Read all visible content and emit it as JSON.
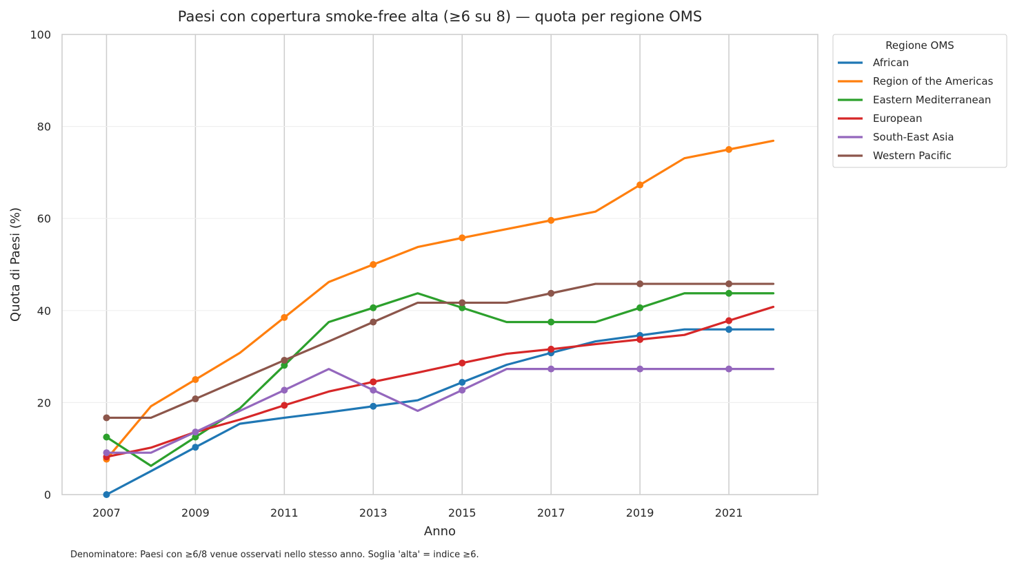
{
  "chart_data": {
    "type": "line",
    "title": "Paesi con copertura smoke-free alta (≥6 su 8) — quota per regione OMS",
    "xlabel": "Anno",
    "ylabel": "Quota di Paesi (%)",
    "xlim": [
      2006,
      2023
    ],
    "ylim": [
      0,
      100
    ],
    "xticks": [
      2007,
      2009,
      2011,
      2013,
      2015,
      2017,
      2019,
      2021
    ],
    "yticks": [
      0,
      20,
      40,
      60,
      80,
      100
    ],
    "grid": "on",
    "legend_title": "Regione OMS",
    "legend_placement": "outside-top-right",
    "footnote": "Denominatore: Paesi con ≥6/8 venue osservati nello stesso anno. Soglia 'alta' = indice ≥6.",
    "x": [
      2007,
      2008,
      2009,
      2010,
      2011,
      2012,
      2013,
      2014,
      2015,
      2016,
      2017,
      2018,
      2019,
      2020,
      2021,
      2022
    ],
    "series": [
      {
        "name": "African",
        "color": "#1f77b4",
        "values": [
          0,
          5.1,
          10.3,
          15.4,
          16.7,
          17.9,
          19.2,
          20.5,
          24.4,
          28.2,
          30.8,
          33.3,
          34.6,
          35.9,
          35.9,
          35.9
        ],
        "markers_at": [
          2007,
          2009,
          2013,
          2015,
          2017,
          2019,
          2021
        ]
      },
      {
        "name": "Region of the Americas",
        "color": "#ff7f0e",
        "values": [
          7.7,
          19.2,
          25.0,
          30.8,
          38.5,
          46.2,
          50.0,
          53.8,
          55.8,
          57.7,
          59.6,
          61.5,
          67.3,
          73.1,
          75.0,
          76.9
        ],
        "markers_at": [
          2007,
          2009,
          2011,
          2013,
          2015,
          2017,
          2019,
          2021
        ]
      },
      {
        "name": "Eastern Mediterranean",
        "color": "#2ca02c",
        "values": [
          12.5,
          6.25,
          12.5,
          18.75,
          28.1,
          37.5,
          40.6,
          43.75,
          40.6,
          37.5,
          37.5,
          37.5,
          40.6,
          43.75,
          43.75,
          43.75
        ],
        "markers_at": [
          2007,
          2009,
          2011,
          2013,
          2015,
          2017,
          2019,
          2021
        ]
      },
      {
        "name": "European",
        "color": "#d62728",
        "values": [
          8.2,
          10.2,
          13.6,
          16.3,
          19.4,
          22.4,
          24.5,
          26.5,
          28.6,
          30.6,
          31.6,
          32.7,
          33.7,
          34.7,
          37.8,
          40.8
        ],
        "markers_at": [
          2007,
          2011,
          2013,
          2015,
          2017,
          2019,
          2021
        ]
      },
      {
        "name": "South-East Asia",
        "color": "#9467bd",
        "values": [
          9.1,
          9.1,
          13.6,
          18.2,
          22.7,
          27.3,
          22.7,
          18.2,
          22.7,
          27.3,
          27.3,
          27.3,
          27.3,
          27.3,
          27.3,
          27.3
        ],
        "markers_at": [
          2007,
          2009,
          2011,
          2013,
          2015,
          2017,
          2019,
          2021
        ]
      },
      {
        "name": "Western Pacific",
        "color": "#8c564b",
        "values": [
          16.7,
          16.7,
          20.8,
          25.0,
          29.2,
          33.3,
          37.5,
          41.7,
          41.7,
          41.7,
          43.75,
          45.8,
          45.8,
          45.8,
          45.8,
          45.8
        ],
        "markers_at": [
          2007,
          2009,
          2011,
          2013,
          2015,
          2017,
          2019,
          2021
        ]
      }
    ]
  }
}
